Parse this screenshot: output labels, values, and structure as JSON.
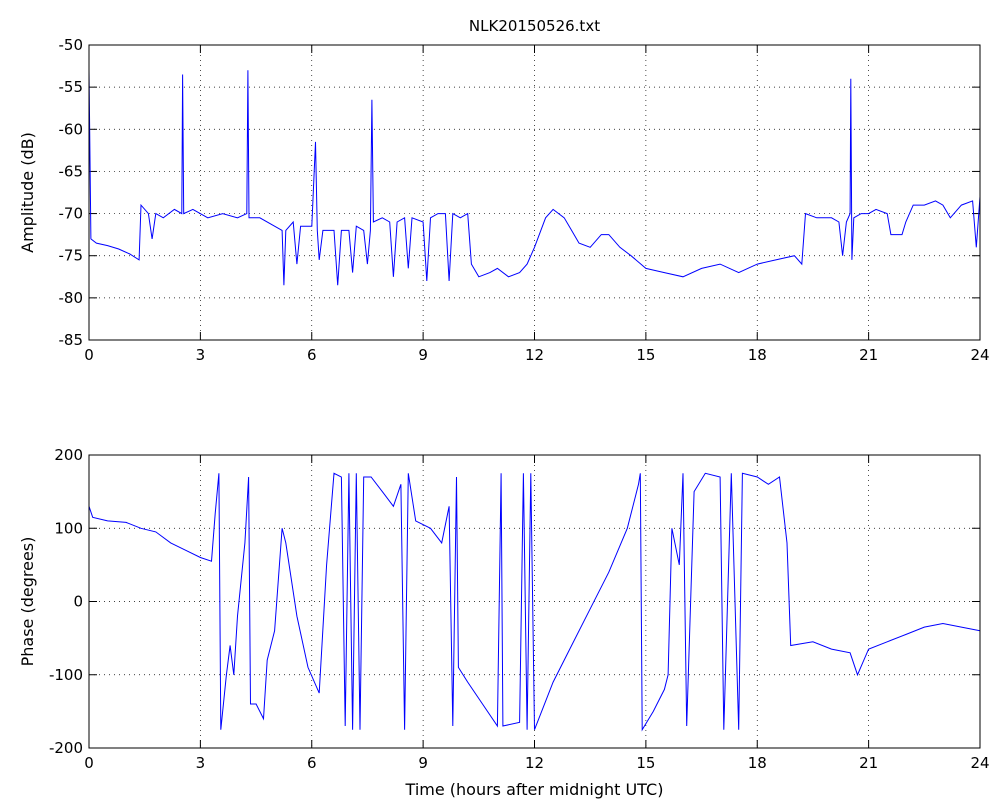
{
  "chart_data": [
    {
      "type": "line",
      "title": "NLK20150526.txt",
      "y_label": "Amplitude (dB)",
      "color": "#0000ff",
      "grid": true,
      "x": [
        0,
        0.05,
        0.2,
        0.5,
        0.8,
        1.1,
        1.35,
        1.4,
        1.6,
        1.7,
        1.8,
        2.0,
        2.3,
        2.5,
        2.52,
        2.55,
        2.8,
        3.2,
        3.6,
        4.0,
        4.25,
        4.28,
        4.31,
        4.6,
        5.0,
        5.2,
        5.25,
        5.3,
        5.5,
        5.6,
        5.7,
        6.0,
        6.1,
        6.15,
        6.2,
        6.3,
        6.6,
        6.7,
        6.8,
        7.0,
        7.1,
        7.2,
        7.4,
        7.5,
        7.58,
        7.62,
        7.66,
        7.9,
        8.1,
        8.2,
        8.3,
        8.5,
        8.6,
        8.7,
        9.0,
        9.1,
        9.2,
        9.4,
        9.6,
        9.7,
        9.8,
        10.0,
        10.2,
        10.3,
        10.5,
        10.8,
        11.0,
        11.3,
        11.6,
        11.8,
        12.0,
        12.3,
        12.5,
        12.8,
        13.0,
        13.2,
        13.5,
        13.8,
        14.0,
        14.3,
        14.6,
        15.0,
        15.5,
        16.0,
        16.5,
        17.0,
        17.5,
        18.0,
        18.5,
        19.0,
        19.2,
        19.3,
        19.6,
        20.0,
        20.2,
        20.3,
        20.4,
        20.5,
        20.52,
        20.55,
        20.6,
        20.8,
        21.0,
        21.2,
        21.5,
        21.6,
        21.9,
        22.0,
        22.2,
        22.5,
        22.8,
        23.0,
        23.2,
        23.5,
        23.8,
        23.9,
        24.0
      ],
      "values": [
        -53,
        -73,
        -73.5,
        -73.8,
        -74.2,
        -74.8,
        -75.5,
        -69,
        -70,
        -73,
        -70,
        -70.5,
        -69.5,
        -70,
        -53.5,
        -70,
        -69.5,
        -70.5,
        -70,
        -70.5,
        -70,
        -53,
        -70.5,
        -70.5,
        -71.5,
        -72,
        -78.5,
        -72,
        -71,
        -76,
        -71.5,
        -71.5,
        -61.5,
        -72,
        -75.5,
        -72,
        -72,
        -78.5,
        -72,
        -72,
        -77,
        -71.5,
        -72,
        -76,
        -72,
        -56.5,
        -71,
        -70.5,
        -71,
        -77.5,
        -71,
        -70.5,
        -76.5,
        -70.5,
        -71,
        -78,
        -70.5,
        -70,
        -70,
        -78,
        -70,
        -70.5,
        -70,
        -76,
        -77.5,
        -77,
        -76.5,
        -77.5,
        -77,
        -76,
        -74,
        -70.5,
        -69.5,
        -70.5,
        -72,
        -73.5,
        -74,
        -72.5,
        -72.5,
        -74,
        -75,
        -76.5,
        -77,
        -77.5,
        -76.5,
        -76,
        -77,
        -76,
        -75.5,
        -75,
        -76,
        -70,
        -70.5,
        -70.5,
        -71,
        -75,
        -71,
        -70,
        -54,
        -75.5,
        -70.5,
        -70,
        -70,
        -69.5,
        -70,
        -72.5,
        -72.5,
        -71,
        -69,
        -69,
        -68.5,
        -69,
        -70.5,
        -69,
        -68.5,
        -74,
        -68
      ],
      "xlim": [
        0,
        24
      ],
      "xticks": [
        0,
        3,
        6,
        9,
        12,
        15,
        18,
        21,
        24
      ],
      "ylim": [
        -85,
        -50
      ],
      "yticks": [
        -85,
        -80,
        -75,
        -70,
        -65,
        -60,
        -55,
        -50
      ]
    },
    {
      "type": "line",
      "x_label": "Time (hours after midnight UTC)",
      "y_label": "Phase (degrees)",
      "color": "#0000ff",
      "grid": true,
      "x": [
        0,
        0.1,
        0.5,
        1.0,
        1.4,
        1.8,
        2.2,
        2.6,
        3.0,
        3.3,
        3.4,
        3.5,
        3.55,
        3.7,
        3.8,
        3.9,
        4.0,
        4.2,
        4.3,
        4.35,
        4.5,
        4.7,
        4.8,
        5.0,
        5.2,
        5.3,
        5.6,
        5.9,
        6.2,
        6.4,
        6.6,
        6.8,
        6.9,
        7.0,
        7.1,
        7.2,
        7.3,
        7.4,
        7.6,
        7.9,
        8.2,
        8.4,
        8.5,
        8.6,
        8.8,
        9.2,
        9.5,
        9.7,
        9.8,
        9.9,
        9.95,
        10.2,
        10.6,
        11.0,
        11.1,
        11.15,
        11.6,
        11.7,
        11.8,
        11.9,
        12.0,
        12.5,
        13.0,
        13.5,
        14.0,
        14.5,
        14.8,
        14.85,
        14.9,
        15.2,
        15.5,
        15.6,
        15.7,
        15.9,
        16.0,
        16.1,
        16.3,
        16.6,
        17.0,
        17.1,
        17.3,
        17.5,
        17.6,
        18.0,
        18.3,
        18.6,
        18.8,
        18.9,
        19.5,
        20.0,
        20.5,
        20.7,
        21.0,
        21.5,
        22.0,
        22.5,
        23.0,
        23.5,
        24.0
      ],
      "values": [
        130,
        115,
        110,
        108,
        100,
        95,
        80,
        70,
        60,
        55,
        120,
        175,
        -175,
        -100,
        -60,
        -100,
        -20,
        80,
        170,
        -140,
        -140,
        -160,
        -80,
        -40,
        100,
        80,
        -20,
        -90,
        -125,
        50,
        175,
        170,
        -170,
        175,
        -175,
        175,
        -175,
        170,
        170,
        150,
        130,
        160,
        -175,
        175,
        110,
        100,
        80,
        130,
        -170,
        170,
        -90,
        -110,
        -140,
        -170,
        175,
        -170,
        -165,
        175,
        -175,
        175,
        -175,
        -110,
        -60,
        -10,
        40,
        100,
        160,
        175,
        -175,
        -150,
        -120,
        -100,
        100,
        50,
        175,
        -170,
        150,
        175,
        170,
        -175,
        175,
        -175,
        175,
        170,
        160,
        170,
        80,
        -60,
        -55,
        -65,
        -70,
        -100,
        -65,
        -55,
        -45,
        -35,
        -30,
        -35,
        -40
      ],
      "xlim": [
        0,
        24
      ],
      "xticks": [
        0,
        3,
        6,
        9,
        12,
        15,
        18,
        21,
        24
      ],
      "ylim": [
        -200,
        200
      ],
      "yticks": [
        -200,
        -100,
        0,
        100,
        200
      ]
    }
  ]
}
